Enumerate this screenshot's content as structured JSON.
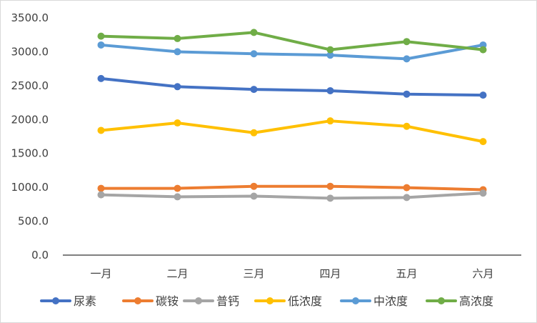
{
  "chart_data": {
    "type": "line",
    "title": "",
    "xlabel": "",
    "ylabel": "",
    "categories": [
      "一月",
      "二月",
      "三月",
      "四月",
      "五月",
      "六月"
    ],
    "y_ticks": [
      "0.0",
      "500.0",
      "1000.0",
      "1500.0",
      "2000.0",
      "2500.0",
      "3000.0",
      "3500.0"
    ],
    "ylim": [
      0,
      3500
    ],
    "grid": false,
    "legend_position": "bottom",
    "series": [
      {
        "name": "尿素",
        "color": "#4472c4",
        "values": [
          2605,
          2485,
          2445,
          2425,
          2375,
          2360
        ]
      },
      {
        "name": "碳铵",
        "color": "#ed7d31",
        "values": [
          985,
          985,
          1015,
          1015,
          995,
          965
        ]
      },
      {
        "name": "普钙",
        "color": "#a5a5a5",
        "values": [
          890,
          860,
          870,
          840,
          850,
          915
        ]
      },
      {
        "name": "低浓度",
        "color": "#ffc000",
        "values": [
          1840,
          1950,
          1805,
          1980,
          1900,
          1675
        ]
      },
      {
        "name": "中浓度",
        "color": "#5b9bd5",
        "values": [
          3100,
          3000,
          2970,
          2950,
          2895,
          3100
        ]
      },
      {
        "name": "高浓度",
        "color": "#70ad47",
        "values": [
          3230,
          3195,
          3285,
          3030,
          3150,
          3030
        ]
      }
    ]
  }
}
